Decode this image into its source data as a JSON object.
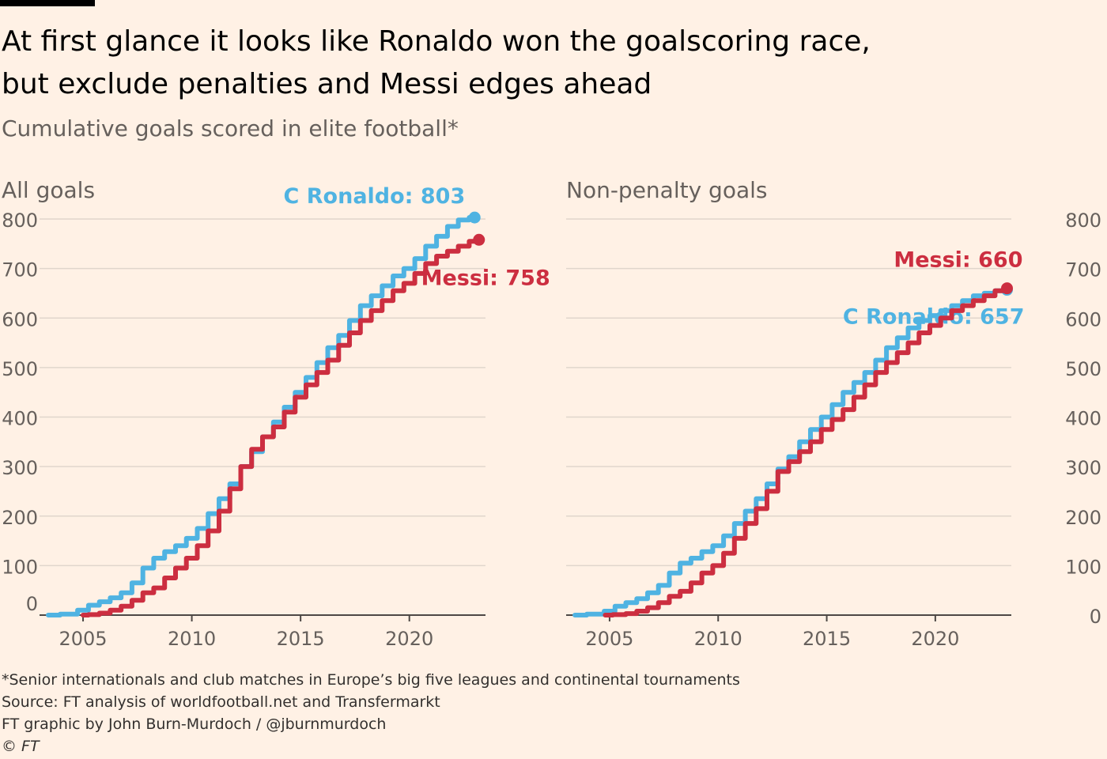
{
  "title_line1": "At first glance it looks like Ronaldo won the goalscoring race,",
  "title_line2": "but exclude penalties and Messi edges ahead",
  "subtitle": "Cumulative goals scored in elite football*",
  "footnotes": [
    "*Senior internationals and club matches in Europe’s big five leagues and continental tournaments",
    "Source: FT analysis of worldfootball.net and Transfermarkt",
    "FT graphic by John Burn-Murdoch / @jburnmurdoch",
    "© FT"
  ],
  "colors": {
    "ronaldo": "#4fb3e2",
    "messi": "#cc2e40",
    "grid": "#e0d6cc",
    "axis": "#4d4845",
    "background": "#fff1e5"
  },
  "chart_data": [
    {
      "type": "line",
      "title": "All goals",
      "xlim": [
        2003,
        2023.5
      ],
      "ylim": [
        0,
        820
      ],
      "xticks": [
        2005,
        2010,
        2015,
        2020
      ],
      "yticks": [
        0,
        100,
        200,
        300,
        400,
        500,
        600,
        700,
        800
      ],
      "ytick_side": "left",
      "series": [
        {
          "name": "C Ronaldo",
          "label": "C Ronaldo: 803",
          "color": "#4fb3e2",
          "x": [
            2003.4,
            2004.5,
            2005.0,
            2005.5,
            2006.0,
            2006.5,
            2007.0,
            2007.5,
            2008.0,
            2008.5,
            2009.0,
            2009.5,
            2010.0,
            2010.5,
            2011.0,
            2011.5,
            2012.0,
            2012.5,
            2013.0,
            2013.5,
            2014.0,
            2014.5,
            2015.0,
            2015.5,
            2016.0,
            2016.5,
            2017.0,
            2017.5,
            2018.0,
            2018.5,
            2019.0,
            2019.5,
            2020.0,
            2020.5,
            2021.0,
            2021.5,
            2022.0,
            2022.5,
            2023.0
          ],
          "y": [
            0,
            2,
            10,
            20,
            27,
            35,
            45,
            65,
            95,
            115,
            128,
            140,
            155,
            175,
            205,
            235,
            265,
            300,
            330,
            360,
            390,
            420,
            450,
            480,
            510,
            540,
            565,
            595,
            625,
            645,
            665,
            685,
            700,
            720,
            745,
            765,
            785,
            798,
            803
          ]
        },
        {
          "name": "Messi",
          "label": "Messi: 758",
          "color": "#cc2e40",
          "x": [
            2005.0,
            2005.5,
            2006.0,
            2006.5,
            2007.0,
            2007.5,
            2008.0,
            2008.5,
            2009.0,
            2009.5,
            2010.0,
            2010.5,
            2011.0,
            2011.5,
            2012.0,
            2012.5,
            2013.0,
            2013.5,
            2014.0,
            2014.5,
            2015.0,
            2015.5,
            2016.0,
            2016.5,
            2017.0,
            2017.5,
            2018.0,
            2018.5,
            2019.0,
            2019.5,
            2020.0,
            2020.5,
            2021.0,
            2021.5,
            2022.0,
            2022.5,
            2023.0,
            2023.2
          ],
          "y": [
            0,
            1,
            4,
            10,
            18,
            30,
            45,
            55,
            75,
            95,
            115,
            140,
            170,
            210,
            255,
            300,
            335,
            360,
            380,
            410,
            440,
            465,
            490,
            515,
            545,
            570,
            595,
            615,
            635,
            655,
            670,
            690,
            710,
            725,
            735,
            745,
            755,
            758
          ]
        }
      ]
    },
    {
      "type": "line",
      "title": "Non-penalty goals",
      "xlim": [
        2003,
        2023.5
      ],
      "ylim": [
        0,
        820
      ],
      "xticks": [
        2005,
        2010,
        2015,
        2020
      ],
      "yticks": [
        0,
        100,
        200,
        300,
        400,
        500,
        600,
        700,
        800
      ],
      "ytick_side": "right",
      "series": [
        {
          "name": "C Ronaldo",
          "label": "C Ronaldo: 657",
          "color": "#4fb3e2",
          "x": [
            2003.4,
            2004.5,
            2005.0,
            2005.5,
            2006.0,
            2006.5,
            2007.0,
            2007.5,
            2008.0,
            2008.5,
            2009.0,
            2009.5,
            2010.0,
            2010.5,
            2011.0,
            2011.5,
            2012.0,
            2012.5,
            2013.0,
            2013.5,
            2014.0,
            2014.5,
            2015.0,
            2015.5,
            2016.0,
            2016.5,
            2017.0,
            2017.5,
            2018.0,
            2018.5,
            2019.0,
            2019.5,
            2020.0,
            2020.5,
            2021.0,
            2021.5,
            2022.0,
            2022.5,
            2023.0,
            2023.3
          ],
          "y": [
            0,
            2,
            8,
            18,
            25,
            33,
            45,
            60,
            85,
            105,
            115,
            128,
            140,
            160,
            185,
            210,
            235,
            265,
            295,
            320,
            350,
            375,
            400,
            425,
            450,
            470,
            490,
            515,
            540,
            560,
            580,
            595,
            605,
            615,
            625,
            635,
            645,
            650,
            655,
            657
          ]
        },
        {
          "name": "Messi",
          "label": "Messi: 660",
          "color": "#cc2e40",
          "x": [
            2004.8,
            2005.5,
            2006.0,
            2006.5,
            2007.0,
            2007.5,
            2008.0,
            2008.5,
            2009.0,
            2009.5,
            2010.0,
            2010.5,
            2011.0,
            2011.5,
            2012.0,
            2012.5,
            2013.0,
            2013.5,
            2014.0,
            2014.5,
            2015.0,
            2015.5,
            2016.0,
            2016.5,
            2017.0,
            2017.5,
            2018.0,
            2018.5,
            2019.0,
            2019.5,
            2020.0,
            2020.5,
            2021.0,
            2021.5,
            2022.0,
            2022.5,
            2023.0,
            2023.3
          ],
          "y": [
            0,
            1,
            3,
            8,
            15,
            25,
            38,
            48,
            65,
            85,
            100,
            125,
            155,
            185,
            215,
            250,
            290,
            310,
            330,
            350,
            375,
            395,
            415,
            440,
            465,
            490,
            510,
            530,
            550,
            570,
            585,
            600,
            615,
            625,
            635,
            645,
            655,
            660
          ]
        }
      ]
    }
  ]
}
